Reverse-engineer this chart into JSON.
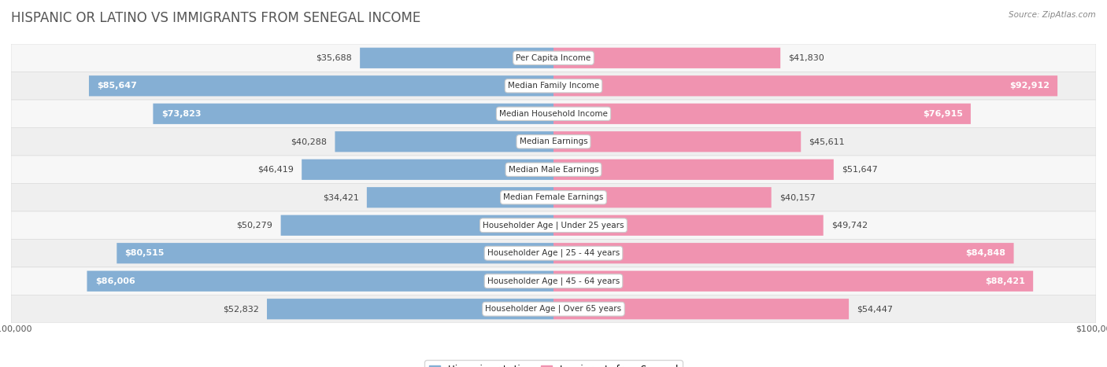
{
  "title": "HISPANIC OR LATINO VS IMMIGRANTS FROM SENEGAL INCOME",
  "source": "Source: ZipAtlas.com",
  "categories": [
    "Per Capita Income",
    "Median Family Income",
    "Median Household Income",
    "Median Earnings",
    "Median Male Earnings",
    "Median Female Earnings",
    "Householder Age | Under 25 years",
    "Householder Age | 25 - 44 years",
    "Householder Age | 45 - 64 years",
    "Householder Age | Over 65 years"
  ],
  "hispanic_values": [
    35688,
    85647,
    73823,
    40288,
    46419,
    34421,
    50279,
    80515,
    86006,
    52832
  ],
  "senegal_values": [
    41830,
    92912,
    76915,
    45611,
    51647,
    40157,
    49742,
    84848,
    88421,
    54447
  ],
  "hispanic_labels": [
    "$35,688",
    "$85,647",
    "$73,823",
    "$40,288",
    "$46,419",
    "$34,421",
    "$50,279",
    "$80,515",
    "$86,006",
    "$52,832"
  ],
  "senegal_labels": [
    "$41,830",
    "$92,912",
    "$76,915",
    "$45,611",
    "$51,647",
    "$40,157",
    "$49,742",
    "$84,848",
    "$88,421",
    "$54,447"
  ],
  "hispanic_color": "#85afd4",
  "senegal_color": "#f093b0",
  "max_value": 100000,
  "bar_height": 0.72,
  "row_bg_odd": "#f7f7f7",
  "row_bg_even": "#efefef",
  "title_fontsize": 12,
  "label_fontsize": 8,
  "category_fontsize": 7.5,
  "legend_fontsize": 8.5,
  "axis_label_fontsize": 8,
  "inside_label_threshold": 55000
}
